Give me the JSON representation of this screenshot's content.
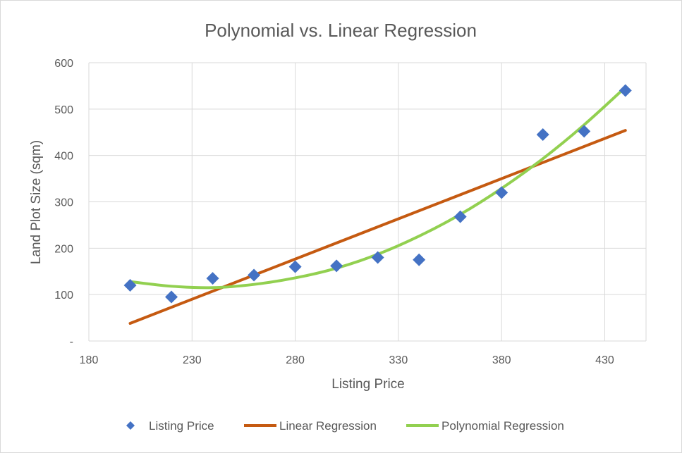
{
  "chart_data": {
    "type": "scatter",
    "title": "Polynomial vs. Linear Regression",
    "xlabel": "Listing Price",
    "ylabel": "Land Plot Size (sqm)",
    "xlim": [
      180,
      450
    ],
    "ylim": [
      0,
      600
    ],
    "x_ticks": [
      180,
      230,
      280,
      330,
      380,
      430
    ],
    "y_ticks": [
      0,
      100,
      200,
      300,
      400,
      500,
      600
    ],
    "y_tick_labels": [
      "-",
      "100",
      "200",
      "300",
      "400",
      "500",
      "600"
    ],
    "grid": true,
    "legend_position": "bottom",
    "series": [
      {
        "name": "Listing Price",
        "kind": "markers",
        "marker": "diamond",
        "color": "#4472C4",
        "x": [
          200,
          220,
          240,
          260,
          280,
          300,
          320,
          340,
          360,
          380,
          400,
          420,
          440
        ],
        "y": [
          120,
          95,
          135,
          142,
          160,
          162,
          180,
          175,
          268,
          320,
          445,
          452,
          540
        ]
      },
      {
        "name": "Linear Regression",
        "kind": "line",
        "color": "#C55A11",
        "x": [
          200,
          440
        ],
        "y": [
          38,
          454
        ]
      },
      {
        "name": "Polynomial Regression",
        "kind": "line",
        "color": "#92D050",
        "x": [
          200,
          220,
          240,
          260,
          280,
          300,
          320,
          340,
          360,
          380,
          400,
          420,
          440
        ],
        "y": [
          128,
          118,
          115,
          122,
          136,
          157,
          187,
          226,
          273,
          329,
          393,
          466,
          547
        ]
      }
    ]
  }
}
